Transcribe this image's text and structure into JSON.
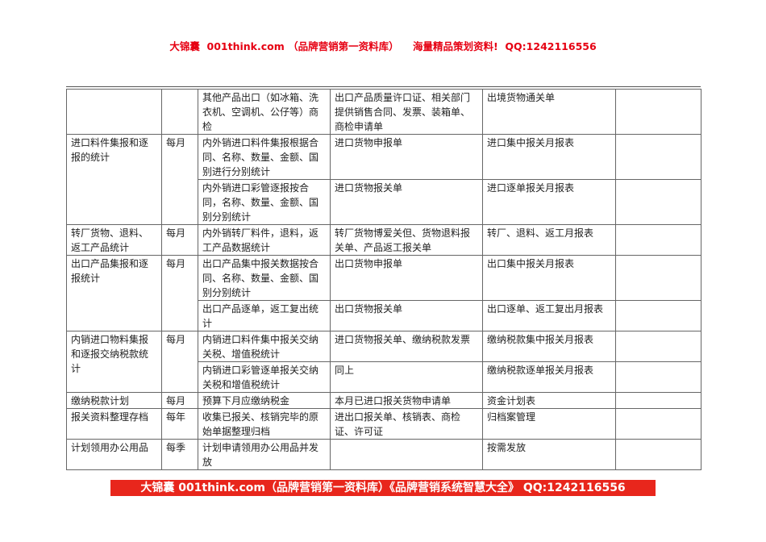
{
  "header": {
    "text": "大锦囊  001think.com （品牌营销第一资料库）    海量精品策划资料!  QQ:1242116556",
    "color": "#e60012"
  },
  "table": {
    "groups": [
      {
        "item": "",
        "frequency": "",
        "rows": [
          {
            "content": "其他产品出口（如冰箱、洗衣机、空调机、公仔等）商检",
            "documents": "出口产品质量许口证、相关部门提供销售合同、发票、装箱单、商检申请单",
            "report": "出境货物通关单",
            "note": ""
          }
        ]
      },
      {
        "item": "进口料件集报和逐报的统计",
        "frequency": "每月",
        "rows": [
          {
            "content": "内外销进口料件集报根据合同、名称、数量、金额、国别进行分别统计",
            "documents": "进口货物申报单",
            "report": "进口集中报关月报表",
            "note": ""
          },
          {
            "content": "内外销进口彩管逐报按合同，名称、数量、金额、国别分别统计",
            "documents": "进口货物报关单",
            "report": "进口逐单报关月报表",
            "note": ""
          }
        ]
      },
      {
        "item": "转厂货物、退料、返工产品统计",
        "frequency": "每月",
        "rows": [
          {
            "content": "内外销转厂料件，退料，返工产品数据统计",
            "documents": "转厂货物博爱关但、货物退料报关单、产品返工报关单",
            "report": "转厂、退料、返工月报表",
            "note": ""
          }
        ]
      },
      {
        "item": "出口产品集报和逐报统计",
        "frequency": "每月",
        "rows": [
          {
            "content": "出口产品集中报关数据按合同、名称、数量、金额、国别分别统计",
            "documents": "出口货物申报单",
            "report": "出口集中报关月报表",
            "note": ""
          },
          {
            "content": "出口产品逐单，返工复出统计",
            "documents": "出口货物报关单",
            "report": "出口逐单、返工复出月报表",
            "note": ""
          }
        ]
      },
      {
        "item": "内销进口物料集报和逐报交纳税款统计",
        "frequency": "每月",
        "rows": [
          {
            "content": "内销进口料件集中报关交纳关税、增值税统计",
            "documents": "进口货物报关单、缴纳税款发票",
            "report": "缴纳税款集中报关月报表",
            "note": ""
          },
          {
            "content": "内销进口彩管逐单报关交纳关税和增值税统计",
            "documents": "同上",
            "report": "缴纳税款逐单报关月报表",
            "note": ""
          }
        ]
      },
      {
        "item": "缴纳税款计划",
        "frequency": "每月",
        "rows": [
          {
            "content": "预算下月应缴纳税金",
            "documents": "本月已进口报关货物申请单",
            "report": "资金计划表",
            "note": ""
          }
        ]
      },
      {
        "item": "报关资料整理存档",
        "frequency": "每年",
        "rows": [
          {
            "content": "收集已报关、核销完毕的原始单据整理归档",
            "documents": "进出口报关单、核销表、商检证、许可证",
            "report": "归档案管理",
            "note": ""
          }
        ]
      },
      {
        "item": "计划领用办公用品",
        "frequency": "每季",
        "rows": [
          {
            "content": "计划申请领用办公用品并发放",
            "documents": "",
            "report": "按需发放",
            "note": ""
          }
        ]
      }
    ]
  },
  "footer": {
    "text": "大锦囊 001think.com（品牌营销第一资料库）《品牌营销系统智慧大全》 QQ:1242116556",
    "background": "#e8261c"
  }
}
